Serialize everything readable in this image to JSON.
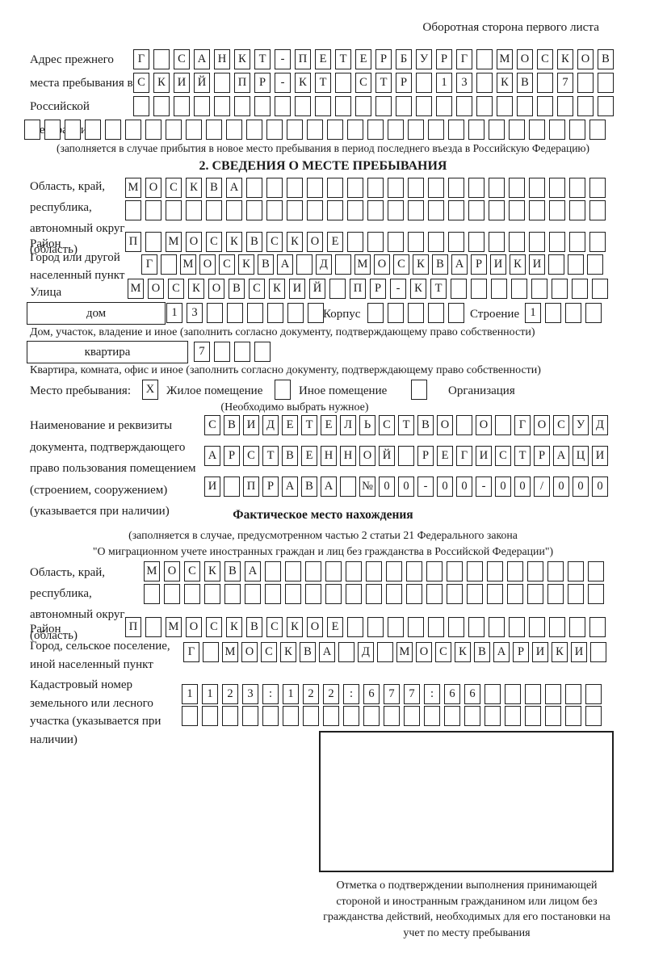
{
  "page": {
    "header_note": "Оборотная сторона первого листа"
  },
  "prev_address": {
    "label": "Адрес прежнего места пребывания в Российской Федерации",
    "rows": [
      [
        "Г",
        "",
        "С",
        "А",
        "Н",
        "К",
        "Т",
        "-",
        "П",
        "Е",
        "Т",
        "Е",
        "Р",
        "Б",
        "У",
        "Р",
        "Г",
        "",
        "М",
        "О",
        "С",
        "К",
        "О",
        "В"
      ],
      [
        "С",
        "К",
        "И",
        "Й",
        "",
        "П",
        "Р",
        "-",
        "К",
        "Т",
        "",
        "С",
        "Т",
        "Р",
        "",
        "1",
        "3",
        "",
        "К",
        "В",
        "",
        "7",
        "",
        ""
      ],
      [
        "",
        "",
        "",
        "",
        "",
        "",
        "",
        "",
        "",
        "",
        "",
        "",
        "",
        "",
        "",
        "",
        "",
        "",
        "",
        "",
        "",
        "",
        "",
        ""
      ],
      [
        "",
        "",
        "",
        "",
        "",
        "",
        "",
        "",
        "",
        "",
        "",
        "",
        "",
        "",
        "",
        "",
        "",
        "",
        "",
        "",
        "",
        "",
        "",
        "",
        "",
        "",
        "",
        "",
        ""
      ]
    ],
    "note": "(заполняется в случае прибытия в новое место пребывания в период последнего въезда в Российскую Федерацию)"
  },
  "section2": {
    "title": "2. СВЕДЕНИЯ О МЕСТЕ ПРЕБЫВАНИЯ",
    "region": {
      "label": "Область, край, республика, автономный округ (область)",
      "rows": [
        [
          "М",
          "О",
          "С",
          "К",
          "В",
          "А",
          "",
          "",
          "",
          "",
          "",
          "",
          "",
          "",
          "",
          "",
          "",
          "",
          "",
          "",
          "",
          "",
          "",
          ""
        ],
        [
          "",
          "",
          "",
          "",
          "",
          "",
          "",
          "",
          "",
          "",
          "",
          "",
          "",
          "",
          "",
          "",
          "",
          "",
          "",
          "",
          "",
          "",
          "",
          ""
        ]
      ]
    },
    "district": {
      "label": "Район",
      "cells": [
        "П",
        "",
        "М",
        "О",
        "С",
        "К",
        "В",
        "С",
        "К",
        "О",
        "Е",
        "",
        "",
        "",
        "",
        "",
        "",
        "",
        "",
        "",
        "",
        "",
        "",
        ""
      ]
    },
    "city": {
      "label": "Город или другой населенный пункт",
      "cells": [
        "Г",
        "",
        "М",
        "О",
        "С",
        "К",
        "В",
        "А",
        "",
        "Д",
        "",
        "М",
        "О",
        "С",
        "К",
        "В",
        "А",
        "Р",
        "И",
        "К",
        "И",
        "",
        "",
        ""
      ]
    },
    "street": {
      "label": "Улица",
      "cells": [
        "М",
        "О",
        "С",
        "К",
        "О",
        "В",
        "С",
        "К",
        "И",
        "Й",
        "",
        "П",
        "Р",
        "-",
        "К",
        "Т",
        "",
        "",
        "",
        "",
        "",
        "",
        "",
        ""
      ]
    },
    "house": {
      "box_label": "дом",
      "cells": [
        "1",
        "3",
        "",
        "",
        "",
        "",
        "",
        ""
      ],
      "korpus_label": "Корпус",
      "korpus_cells": [
        "",
        "",
        "",
        "",
        ""
      ],
      "stroenie_label": "Строение",
      "stroenie_cells": [
        "1",
        "",
        "",
        ""
      ]
    },
    "house_note": "Дом, участок, владение и иное (заполнить согласно документу, подтверждающему право собственности)",
    "apartment": {
      "box_label": "квартира",
      "cells": [
        "7",
        "",
        "",
        ""
      ]
    },
    "apartment_note": "Квартира, комната, офис и иное (заполнить согласно документу, подтверждающему право собственности)",
    "stay_place": {
      "label": "Место пребывания:",
      "options": [
        {
          "label": "Жилое помещение",
          "checked": "X"
        },
        {
          "label": "Иное помещение",
          "checked": ""
        },
        {
          "label": "Организация",
          "checked": ""
        }
      ],
      "note": "(Необходимо выбрать нужное)"
    },
    "document": {
      "label": "Наименование и реквизиты документа, подтверждающего право пользования помещением (строением, сооружением) (указывается при наличии)",
      "rows": [
        [
          "С",
          "В",
          "И",
          "Д",
          "Е",
          "Т",
          "Е",
          "Л",
          "Ь",
          "С",
          "Т",
          "В",
          "О",
          "",
          "О",
          "",
          "Г",
          "О",
          "С",
          "У",
          "Д"
        ],
        [
          "А",
          "Р",
          "С",
          "Т",
          "В",
          "Е",
          "Н",
          "Н",
          "О",
          "Й",
          "",
          "Р",
          "Е",
          "Г",
          "И",
          "С",
          "Т",
          "Р",
          "А",
          "Ц",
          "И"
        ],
        [
          "И",
          "",
          "П",
          "Р",
          "А",
          "В",
          "А",
          "",
          "№",
          "0",
          "0",
          "-",
          "0",
          "0",
          "-",
          "0",
          "0",
          "/",
          "0",
          "0",
          "0"
        ]
      ]
    }
  },
  "actual_location": {
    "title": "Фактическое место нахождения",
    "note_line1": "(заполняется в случае, предусмотренном частью 2 статьи 21 Федерального закона",
    "note_line2": "\"О миграционном учете иностранных граждан и лиц без гражданства в Российской Федерации\")",
    "region": {
      "label": "Область, край, республика, автономный округ (область)",
      "rows": [
        [
          "М",
          "О",
          "С",
          "К",
          "В",
          "А",
          "",
          "",
          "",
          "",
          "",
          "",
          "",
          "",
          "",
          "",
          "",
          "",
          "",
          "",
          "",
          "",
          ""
        ],
        [
          "",
          "",
          "",
          "",
          "",
          "",
          "",
          "",
          "",
          "",
          "",
          "",
          "",
          "",
          "",
          "",
          "",
          "",
          "",
          "",
          "",
          "",
          ""
        ]
      ]
    },
    "district": {
      "label": "Район",
      "cells": [
        "П",
        "",
        "М",
        "О",
        "С",
        "К",
        "В",
        "С",
        "К",
        "О",
        "Е",
        "",
        "",
        "",
        "",
        "",
        "",
        "",
        "",
        "",
        "",
        "",
        "",
        ""
      ]
    },
    "city": {
      "label": "Город, сельское поселение, иной населенный пункт",
      "cells": [
        "Г",
        "",
        "М",
        "О",
        "С",
        "К",
        "В",
        "А",
        "",
        "Д",
        "",
        "М",
        "О",
        "С",
        "К",
        "В",
        "А",
        "Р",
        "И",
        "К",
        "И",
        ""
      ]
    },
    "cadastre": {
      "label": "Кадастровый номер земельного или лесного участка (указывается при наличии)",
      "rows": [
        [
          "1",
          "1",
          "2",
          "3",
          ":",
          "1",
          "2",
          "2",
          ":",
          "6",
          "7",
          "7",
          ":",
          "6",
          "6",
          "",
          "",
          "",
          "",
          "",
          ""
        ],
        [
          "",
          "",
          "",
          "",
          "",
          "",
          "",
          "",
          "",
          "",
          "",
          "",
          "",
          "",
          "",
          "",
          "",
          "",
          "",
          "",
          ""
        ]
      ]
    },
    "stamp_note": "Отметка о подтверждении выполнения принимающей стороной и иностранным гражданином или лицом без гражданства действий, необходимых для его постановки на учет по месту пребывания"
  }
}
